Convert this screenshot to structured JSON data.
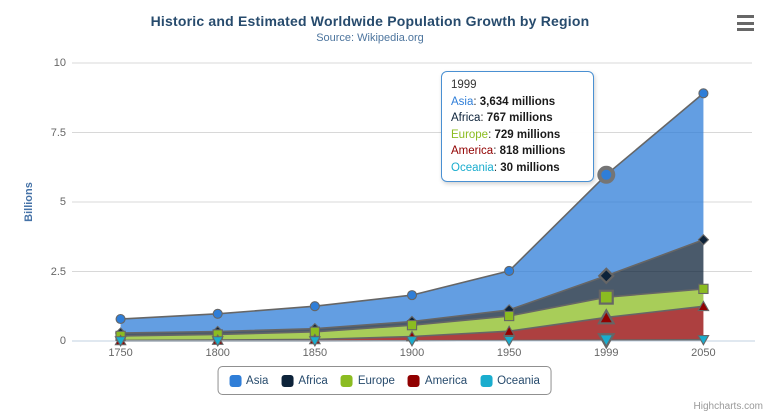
{
  "credits": {
    "label": "Highcharts.com"
  },
  "export_menu": {
    "icon": "hamburger-menu"
  },
  "tooltip": {
    "title": "1999",
    "separator": ": ",
    "rows": [
      {
        "name": "Asia",
        "value": "3,634 millions"
      },
      {
        "name": "Africa",
        "value": "767 millions"
      },
      {
        "name": "Europe",
        "value": "729 millions"
      },
      {
        "name": "America",
        "value": "818 millions"
      },
      {
        "name": "Oceania",
        "value": "30 millions"
      }
    ]
  },
  "chart_data": {
    "type": "area",
    "stacking": "normal",
    "title": "Historic and Estimated Worldwide Population Growth by Region",
    "subtitle": "Source: Wikipedia.org",
    "ylabel": "Billions",
    "xlabel": "",
    "unit": "millions",
    "categories": [
      "1750",
      "1800",
      "1850",
      "1900",
      "1950",
      "1999",
      "2050"
    ],
    "yticks": [
      "0",
      "2.5",
      "5",
      "7.5",
      "10"
    ],
    "ylim": [
      0,
      10
    ],
    "grid": "horizontal-only",
    "legend_position": "bottom-center",
    "hovered_category": "1999",
    "series": [
      {
        "name": "Asia",
        "color": "#2f7ed8",
        "marker": "circle",
        "values_millions": [
          502,
          635,
          809,
          947,
          1402,
          3634,
          5268
        ]
      },
      {
        "name": "Africa",
        "color": "#0d233a",
        "marker": "diamond",
        "values_millions": [
          106,
          107,
          111,
          133,
          221,
          767,
          1766
        ]
      },
      {
        "name": "Europe",
        "color": "#8bbc21",
        "marker": "square",
        "values_millions": [
          163,
          203,
          276,
          408,
          547,
          729,
          628
        ]
      },
      {
        "name": "America",
        "color": "#910000",
        "marker": "triangle",
        "values_millions": [
          18,
          31,
          54,
          156,
          339,
          818,
          1201
        ]
      },
      {
        "name": "Oceania",
        "color": "#1aadce",
        "marker": "triangle-down",
        "values_millions": [
          2,
          2,
          2,
          6,
          13,
          30,
          46
        ]
      }
    ],
    "colors": {
      "title": "#274b6d",
      "subtitle": "#4d759e",
      "axis_labels": "#666666",
      "area_outline": "#666666",
      "marker_outline": "#666666",
      "axis_line": "#c0d0e0",
      "grid_line": "#d8d8d8",
      "legend_text": "#274b6d",
      "tooltip_border": "#4a90d2"
    },
    "fill_opacity": 0.75
  }
}
